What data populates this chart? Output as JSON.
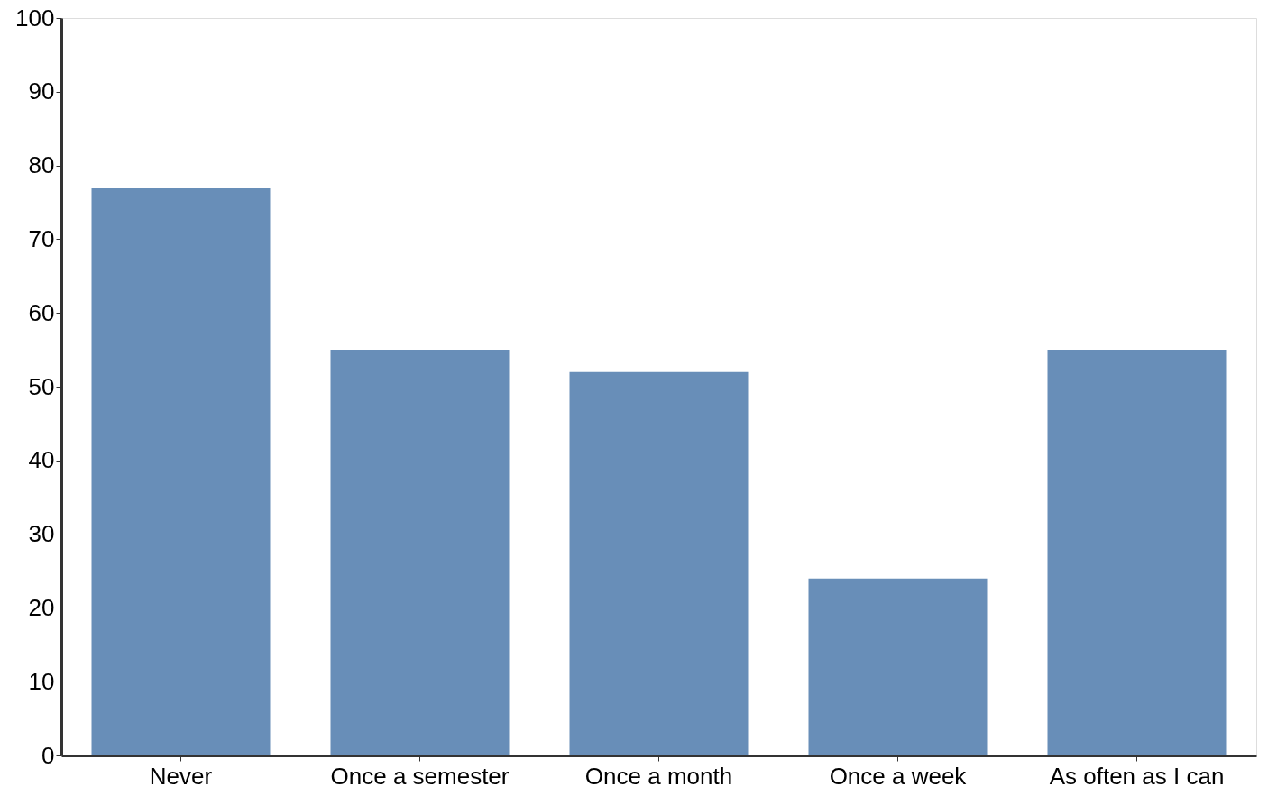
{
  "chart_data": {
    "type": "bar",
    "categories": [
      "Never",
      "Once a semester",
      "Once a month",
      "Once a week",
      "As often as I can"
    ],
    "values": [
      77,
      55,
      52,
      24,
      55
    ],
    "color": "#688eb8",
    "ylim": [
      0,
      100
    ],
    "yticks": [
      0,
      10,
      20,
      30,
      40,
      50,
      60,
      70,
      80,
      90,
      100
    ],
    "grid": false
  }
}
